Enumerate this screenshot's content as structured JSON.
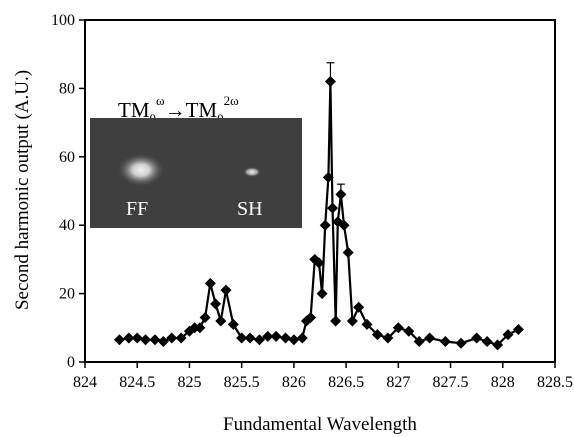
{
  "chart_data": {
    "type": "line",
    "xlabel": "Fundamental Wavelength",
    "ylabel": "Second harmonic output (A.U.)",
    "xlim": [
      824,
      828.5
    ],
    "ylim": [
      0,
      100
    ],
    "xticks": [
      824,
      824.5,
      825,
      825.5,
      826,
      826.5,
      827,
      827.5,
      828,
      828.5
    ],
    "yticks": [
      0,
      20,
      40,
      60,
      80,
      100
    ],
    "marker": "diamond",
    "line_color": "#000000",
    "series": [
      {
        "x": [
          824.33,
          824.42,
          824.5,
          824.58,
          824.67,
          824.75,
          824.83,
          824.92,
          825.0,
          825.05,
          825.1,
          825.15,
          825.2,
          825.25,
          825.3,
          825.35,
          825.42,
          825.5,
          825.58,
          825.67,
          825.75,
          825.83,
          825.92,
          826.0,
          826.08,
          826.12,
          826.16,
          826.2,
          826.24,
          826.27,
          826.3,
          826.33,
          826.35,
          826.37,
          826.4,
          826.42,
          826.45,
          826.48,
          826.52,
          826.56,
          826.62,
          826.7,
          826.8,
          826.9,
          827.0,
          827.1,
          827.2,
          827.3,
          827.45,
          827.6,
          827.75,
          827.85,
          827.95,
          828.05,
          828.15
        ],
        "y": [
          6.5,
          7,
          7,
          6.5,
          6.5,
          6,
          7,
          7,
          9,
          10,
          10,
          13,
          23,
          17,
          12,
          21,
          11,
          7,
          7,
          6.5,
          7.5,
          7.5,
          7,
          6.5,
          7,
          12,
          13,
          30,
          29,
          20,
          40,
          54,
          82,
          45,
          12,
          41,
          49,
          40,
          32,
          12,
          16,
          11,
          8,
          7,
          10,
          9,
          6,
          7,
          6,
          5.5,
          7,
          6,
          5,
          8,
          9.5
        ]
      }
    ],
    "error_bars": [
      {
        "x": 826.35,
        "y": 82,
        "plus": 5.5
      },
      {
        "x": 826.45,
        "y": 49,
        "plus": 3.0
      }
    ],
    "inset": {
      "title_base": "TM",
      "title_sub": "0",
      "title_sup1": "ω",
      "title_arrow": "→",
      "title_sup2": "2ω",
      "labels": [
        "FF",
        "SH"
      ],
      "background": "#3f3f3f"
    }
  }
}
